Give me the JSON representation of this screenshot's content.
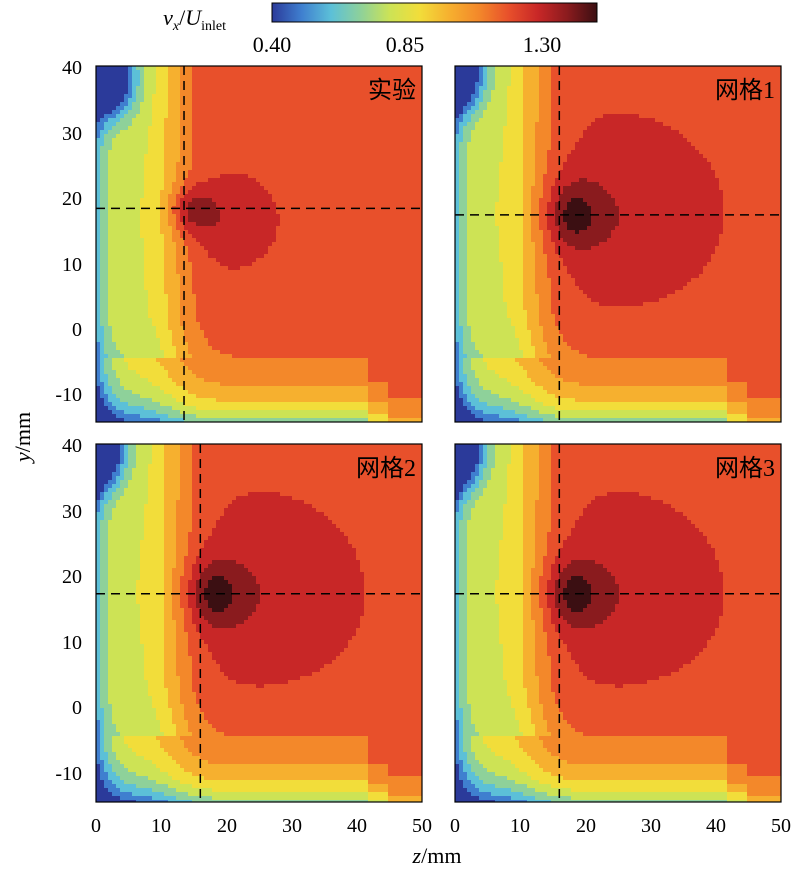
{
  "chart_data": {
    "type": "heatmap",
    "colorbar": {
      "var": "v",
      "var_sub": "x",
      "denom": "U",
      "denom_sub": "inlet",
      "ticks": [
        "0.40",
        "0.85",
        "1.30"
      ],
      "range": [
        0.4,
        1.45
      ],
      "colors": [
        "#2b3a9a",
        "#3f7fcf",
        "#5cc0d8",
        "#8ed19a",
        "#cde355",
        "#f2dd3a",
        "#f6b02f",
        "#f3882a",
        "#e8502b",
        "#c82727",
        "#8a1b1e",
        "#3b0f12"
      ]
    },
    "xlabel_var": "z",
    "xlabel_unit": "/mm",
    "ylabel_var": "y",
    "ylabel_unit": "/mm",
    "x_ticks": [
      "0",
      "10",
      "20",
      "30",
      "40",
      "50"
    ],
    "y_ticks": [
      "40",
      "30",
      "20",
      "10",
      "0",
      "-10"
    ],
    "xlim": [
      0,
      50
    ],
    "ylim": [
      -15,
      40
    ],
    "panels": [
      {
        "label": "实验",
        "crosshair": {
          "z": 13.5,
          "y": 18
        },
        "core": {
          "z": 14.5,
          "y": 18,
          "rz": 3.2,
          "ry": 3.4,
          "peak": 1.44
        },
        "halo": {
          "z": 18,
          "y": 16,
          "rz": 7,
          "ry": 6,
          "level": 1.27
        },
        "plateau": 1.18,
        "low_corner": {
          "z": 2,
          "y": 38,
          "level": 0.45
        }
      },
      {
        "label": "网格1",
        "crosshair": {
          "z": 16,
          "y": 17
        },
        "core": {
          "z": 18,
          "y": 17,
          "rz": 4,
          "ry": 5,
          "peak": 1.45
        },
        "halo": {
          "z": 24,
          "y": 17,
          "rz": 12,
          "ry": 11,
          "level": 1.27
        },
        "plateau": 1.18,
        "low_corner": {
          "z": 0.5,
          "y": 39,
          "level": 0.45
        }
      },
      {
        "label": "网格2",
        "crosshair": {
          "z": 16,
          "y": 17
        },
        "core": {
          "z": 18,
          "y": 17,
          "rz": 4,
          "ry": 5,
          "peak": 1.45
        },
        "halo": {
          "z": 24,
          "y": 17,
          "rz": 12,
          "ry": 11,
          "level": 1.27
        },
        "plateau": 1.18,
        "low_corner": {
          "z": 0.5,
          "y": 39,
          "level": 0.45
        }
      },
      {
        "label": "网格3",
        "crosshair": {
          "z": 16,
          "y": 17
        },
        "core": {
          "z": 18,
          "y": 17,
          "rz": 4,
          "ry": 5,
          "peak": 1.45
        },
        "halo": {
          "z": 24,
          "y": 17,
          "rz": 12,
          "ry": 11,
          "level": 1.27
        },
        "plateau": 1.18,
        "low_corner": {
          "z": 0.5,
          "y": 39,
          "level": 0.45
        }
      }
    ],
    "contour_levels": 12
  }
}
